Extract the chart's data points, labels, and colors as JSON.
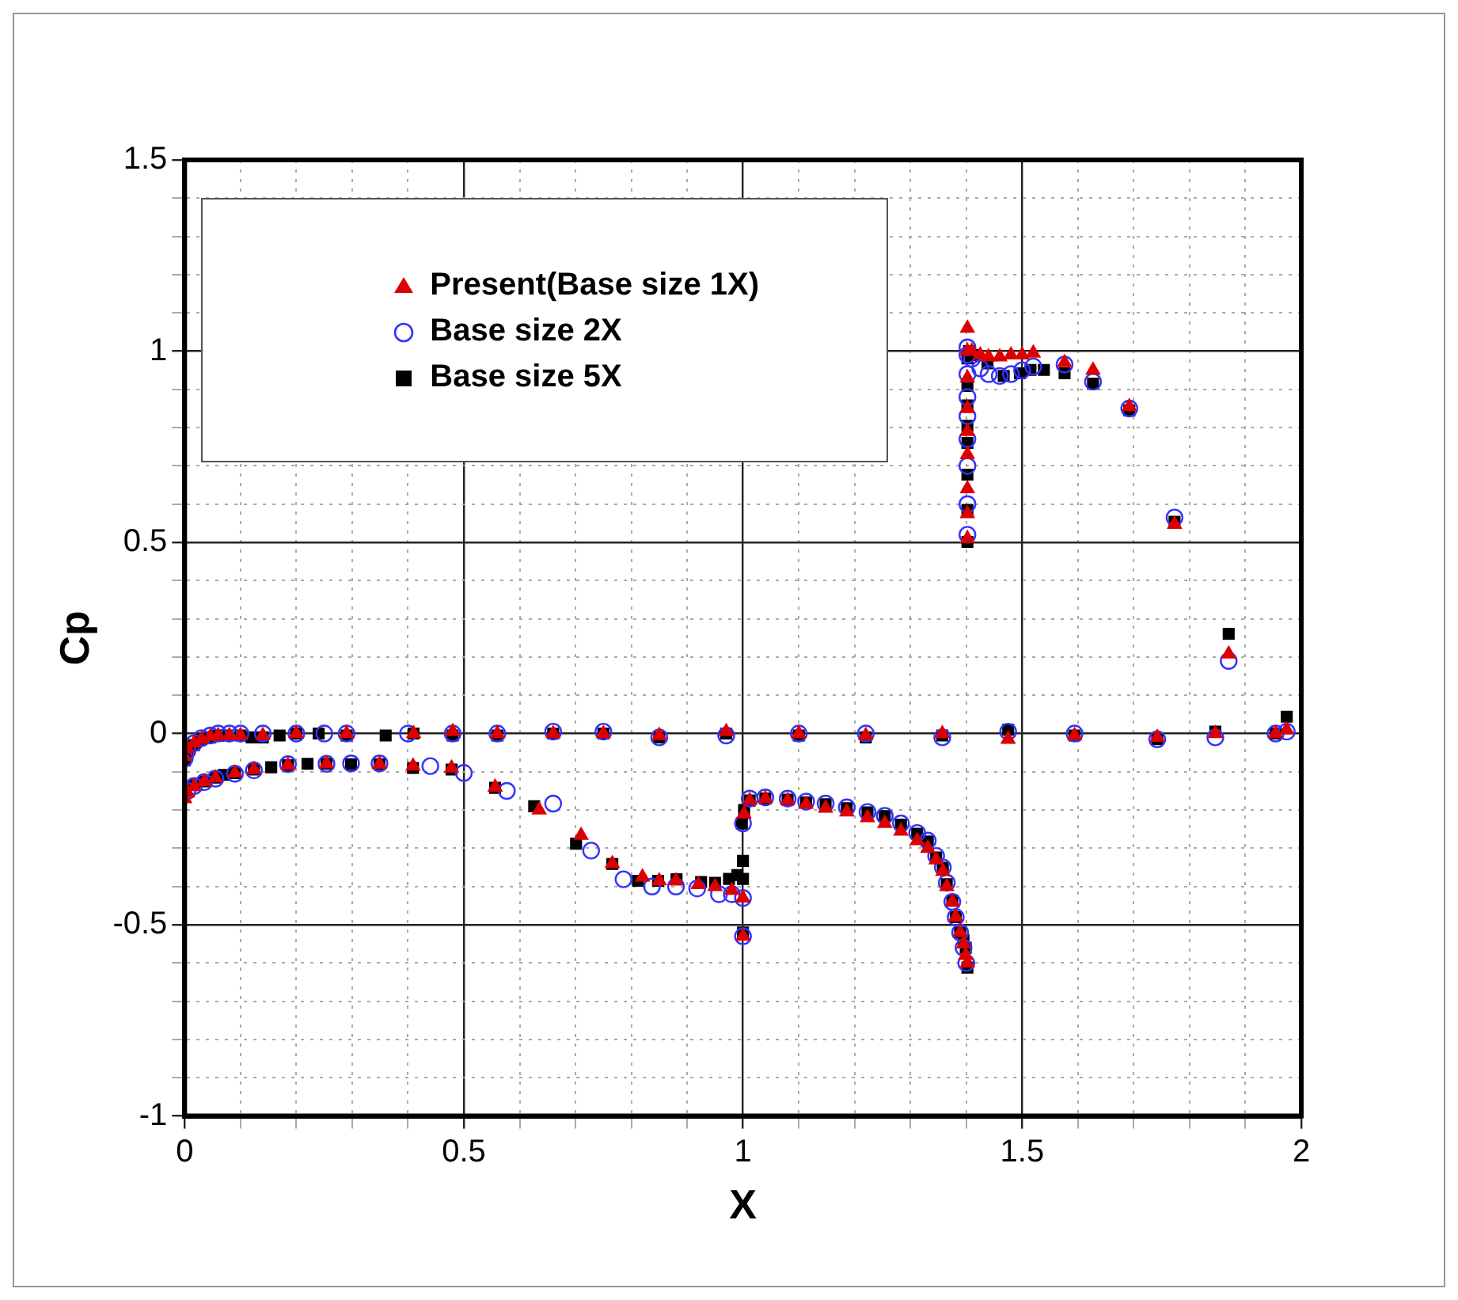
{
  "chart_data": {
    "type": "scatter",
    "xlabel": "X",
    "ylabel": "Cp",
    "legend": "top left",
    "grid": true,
    "xlim": [
      0,
      2
    ],
    "ylim": [
      -1,
      1.5
    ],
    "xticks": [
      0,
      {
        "value": 0.1,
        "label": null
      },
      {
        "value": 0.2,
        "label": null
      },
      {
        "value": 0.3,
        "label": null
      },
      {
        "value": 0.4,
        "label": null
      },
      0.5,
      {
        "value": 0.6,
        "label": null
      },
      {
        "value": 0.7,
        "label": null
      },
      {
        "value": 0.8,
        "label": null
      },
      {
        "value": 0.9,
        "label": null
      },
      1,
      {
        "value": 1.1,
        "label": null
      },
      {
        "value": 1.2,
        "label": null
      },
      {
        "value": 1.3,
        "label": null
      },
      {
        "value": 1.4,
        "label": null
      },
      1.5,
      {
        "value": 1.6,
        "label": null
      },
      {
        "value": 1.7,
        "label": null
      },
      {
        "value": 1.8,
        "label": null
      },
      {
        "value": 1.9,
        "label": null
      },
      2
    ],
    "yticks": [
      -1,
      {
        "value": -0.9,
        "label": null
      },
      {
        "value": -0.8,
        "label": null
      },
      {
        "value": -0.7,
        "label": null
      },
      {
        "value": -0.6,
        "label": null
      },
      -0.5,
      {
        "value": -0.4,
        "label": null
      },
      {
        "value": -0.3,
        "label": null
      },
      {
        "value": -0.2,
        "label": null
      },
      {
        "value": -0.1,
        "label": null
      },
      0,
      {
        "value": 0.1,
        "label": null
      },
      {
        "value": 0.2,
        "label": null
      },
      {
        "value": 0.3,
        "label": null
      },
      {
        "value": 0.4,
        "label": null
      },
      0.5,
      {
        "value": 0.6,
        "label": null
      },
      {
        "value": 0.7,
        "label": null
      },
      {
        "value": 0.8,
        "label": null
      },
      {
        "value": 0.9,
        "label": null
      },
      1,
      {
        "value": 1.1,
        "label": null
      },
      {
        "value": 1.2,
        "label": null
      },
      {
        "value": 1.3,
        "label": null
      },
      {
        "value": 1.4,
        "label": null
      },
      1.5
    ],
    "series": [
      {
        "name": "Present(Base size 1X)",
        "color": "#dd0000",
        "marker": "triangle",
        "x": [
          0,
          0.005,
          0.017,
          0.03,
          0.046,
          0.06,
          0.08,
          0.1,
          0.14,
          0.2,
          0.29,
          0.41,
          0.48,
          0.56,
          0.66,
          0.75,
          0.85,
          0.97,
          1.1,
          1.22,
          1.357,
          1.475,
          1.594,
          1.742,
          1.846,
          1.954,
          1.974,
          0,
          0.005,
          0.017,
          0.035,
          0.055,
          0.09,
          0.124,
          0.185,
          0.254,
          0.349,
          0.409,
          0.478,
          0.556,
          0.635,
          0.71,
          0.766,
          0.82,
          0.85,
          0.88,
          0.92,
          0.95,
          0.98,
          1.0,
          1.0,
          1.002,
          1.012,
          1.04,
          1.08,
          1.113,
          1.148,
          1.186,
          1.223,
          1.254,
          1.283,
          1.312,
          1.331,
          1.346,
          1.358,
          1.365,
          1.375,
          1.381,
          1.389,
          1.395,
          1.399,
          1.402,
          1.402,
          1.402,
          1.402,
          1.402,
          1.402,
          1.402,
          1.402,
          1.402,
          1.402,
          1.41,
          1.425,
          1.44,
          1.46,
          1.48,
          1.5,
          1.52,
          1.576,
          1.627,
          1.692,
          1.773,
          1.87
        ],
        "values": [
          -0.06,
          -0.04,
          -0.025,
          -0.015,
          -0.008,
          -0.005,
          -0.005,
          -0.005,
          -0.005,
          0,
          0,
          0,
          0.005,
          0,
          0,
          0,
          -0.005,
          0.005,
          0,
          -0.005,
          0,
          -0.015,
          -0.005,
          -0.01,
          0,
          0,
          0.01,
          -0.17,
          -0.155,
          -0.138,
          -0.126,
          -0.116,
          -0.103,
          -0.094,
          -0.083,
          -0.079,
          -0.08,
          -0.085,
          -0.09,
          -0.14,
          -0.2,
          -0.266,
          -0.34,
          -0.375,
          -0.385,
          -0.385,
          -0.395,
          -0.4,
          -0.41,
          -0.43,
          -0.53,
          -0.21,
          -0.175,
          -0.17,
          -0.175,
          -0.185,
          -0.195,
          -0.205,
          -0.22,
          -0.235,
          -0.255,
          -0.28,
          -0.3,
          -0.33,
          -0.36,
          -0.4,
          -0.44,
          -0.48,
          -0.52,
          -0.55,
          -0.58,
          -0.6,
          0.51,
          0.575,
          0.64,
          0.73,
          0.79,
          0.85,
          0.93,
          1.0,
          1.06,
          1.0,
          0.99,
          0.985,
          0.985,
          0.99,
          0.99,
          0.995,
          0.97,
          0.95,
          0.855,
          0.547,
          0.208
        ]
      },
      {
        "name": "Base size 2X",
        "color": "#3333ff",
        "marker": "circle",
        "x": [
          0,
          0.005,
          0.017,
          0.03,
          0.046,
          0.06,
          0.08,
          0.1,
          0.14,
          0.2,
          0.25,
          0.29,
          0.4,
          0.48,
          0.56,
          0.66,
          0.75,
          0.85,
          0.97,
          1.1,
          1.22,
          1.357,
          1.475,
          1.594,
          1.742,
          1.846,
          1.954,
          1.974,
          0.005,
          0.017,
          0.035,
          0.055,
          0.09,
          0.124,
          0.185,
          0.254,
          0.298,
          0.349,
          0.44,
          0.5,
          0.577,
          0.66,
          0.728,
          0.786,
          0.837,
          0.88,
          0.918,
          0.957,
          0.98,
          1.0,
          1.0,
          1.0,
          1.012,
          1.04,
          1.08,
          1.113,
          1.148,
          1.186,
          1.223,
          1.254,
          1.283,
          1.312,
          1.331,
          1.346,
          1.358,
          1.365,
          1.375,
          1.381,
          1.389,
          1.395,
          1.4,
          1.402,
          1.402,
          1.402,
          1.402,
          1.402,
          1.402,
          1.402,
          1.402,
          1.402,
          1.41,
          1.425,
          1.44,
          1.46,
          1.48,
          1.5,
          1.52,
          1.576,
          1.627,
          1.692,
          1.773,
          1.87
        ],
        "values": [
          -0.065,
          -0.045,
          -0.025,
          -0.012,
          -0.005,
          0,
          0,
          0,
          0,
          0,
          0,
          0,
          0,
          0,
          0,
          0.005,
          0.005,
          -0.01,
          -0.005,
          0,
          0,
          -0.01,
          0.005,
          0,
          -0.015,
          -0.01,
          0,
          0.005,
          -0.15,
          -0.137,
          -0.127,
          -0.118,
          -0.105,
          -0.096,
          -0.08,
          -0.079,
          -0.078,
          -0.078,
          -0.085,
          -0.103,
          -0.15,
          -0.183,
          -0.306,
          -0.381,
          -0.4,
          -0.4,
          -0.405,
          -0.42,
          -0.42,
          -0.43,
          -0.53,
          -0.235,
          -0.17,
          -0.167,
          -0.17,
          -0.178,
          -0.183,
          -0.193,
          -0.205,
          -0.215,
          -0.235,
          -0.26,
          -0.28,
          -0.32,
          -0.35,
          -0.39,
          -0.44,
          -0.48,
          -0.52,
          -0.56,
          -0.6,
          0.52,
          0.6,
          0.7,
          0.77,
          0.83,
          0.88,
          0.94,
          0.99,
          1.01,
          0.98,
          0.955,
          0.94,
          0.935,
          0.94,
          0.95,
          0.96,
          0.965,
          0.92,
          0.85,
          0.565,
          0.19
        ]
      },
      {
        "name": "Base size 5X",
        "color": "#000000",
        "marker": "square",
        "x": [
          0,
          0.005,
          0.017,
          0.03,
          0.046,
          0.06,
          0.075,
          0.1,
          0.12,
          0.14,
          0.17,
          0.2,
          0.24,
          0.29,
          0.36,
          0.41,
          0.48,
          0.56,
          0.66,
          0.75,
          0.85,
          0.97,
          1.1,
          1.22,
          1.357,
          1.475,
          1.594,
          1.742,
          1.846,
          1.954,
          1.974,
          0.017,
          0.035,
          0.055,
          0.07,
          0.09,
          0.124,
          0.155,
          0.185,
          0.22,
          0.254,
          0.298,
          0.349,
          0.409,
          0.478,
          0.556,
          0.626,
          0.701,
          0.766,
          0.812,
          0.848,
          0.881,
          0.925,
          0.95,
          0.975,
          0.99,
          1.0,
          1.0,
          1.0,
          0.998,
          1.002,
          1.012,
          1.04,
          1.08,
          1.113,
          1.148,
          1.186,
          1.223,
          1.254,
          1.283,
          1.312,
          1.331,
          1.346,
          1.358,
          1.365,
          1.375,
          1.381,
          1.389,
          1.395,
          1.399,
          1.402,
          1.402,
          1.402,
          1.402,
          1.402,
          1.402,
          1.402,
          1.402,
          1.402,
          1.405,
          1.415,
          1.438,
          1.467,
          1.496,
          1.515,
          1.539,
          1.576,
          1.627,
          1.692,
          1.773,
          1.87
        ],
        "values": [
          -0.07,
          -0.05,
          -0.03,
          -0.015,
          -0.01,
          -0.005,
          -0.005,
          -0.005,
          -0.01,
          -0.01,
          -0.005,
          0,
          0,
          -0.005,
          -0.005,
          0,
          -0.005,
          -0.005,
          0,
          0,
          -0.01,
          0,
          -0.005,
          -0.01,
          -0.005,
          0.01,
          -0.005,
          -0.015,
          0.005,
          0,
          0.044,
          -0.135,
          -0.125,
          -0.115,
          -0.108,
          -0.103,
          -0.094,
          -0.088,
          -0.083,
          -0.079,
          -0.079,
          -0.08,
          -0.08,
          -0.09,
          -0.094,
          -0.142,
          -0.19,
          -0.288,
          -0.341,
          -0.385,
          -0.385,
          -0.381,
          -0.388,
          -0.39,
          -0.38,
          -0.37,
          -0.333,
          -0.38,
          -0.52,
          -0.235,
          -0.2,
          -0.175,
          -0.17,
          -0.173,
          -0.18,
          -0.185,
          -0.195,
          -0.206,
          -0.216,
          -0.238,
          -0.262,
          -0.282,
          -0.324,
          -0.351,
          -0.394,
          -0.437,
          -0.48,
          -0.52,
          -0.54,
          -0.56,
          -0.612,
          0.501,
          0.585,
          0.677,
          0.76,
          0.805,
          0.858,
          0.909,
          0.981,
          1.0,
          0.99,
          0.968,
          0.935,
          0.942,
          0.951,
          0.951,
          0.942,
          0.915,
          0.845,
          0.554,
          0.261
        ]
      }
    ]
  }
}
